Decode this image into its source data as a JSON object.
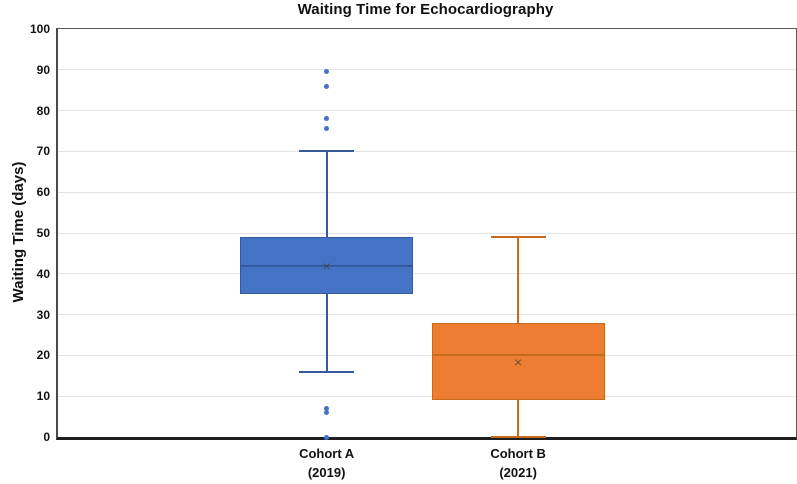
{
  "chart_data": {
    "type": "box",
    "title": "Waiting Time for Echocardiography",
    "ylabel": "Waiting Time (days)",
    "ylim": [
      0,
      100
    ],
    "yticks": [
      0,
      10,
      20,
      30,
      40,
      50,
      60,
      70,
      80,
      90,
      100
    ],
    "grid": true,
    "legend": false,
    "categories": [
      "Cohort A (2019)",
      "Cohort B (2021)"
    ],
    "series": [
      {
        "name": "Cohort A",
        "label_lines": [
          "Cohort A",
          "(2019)"
        ],
        "fill": "#4472C4",
        "edge": "#35599C",
        "median_color": "#35599C",
        "whisker_low": 16,
        "q1": 35,
        "median": 42,
        "mean": 42,
        "q3": 49,
        "whisker_high": 70,
        "outliers": [
          89.5,
          86,
          78,
          75.5,
          7,
          6,
          0
        ]
      },
      {
        "name": "Cohort B",
        "label_lines": [
          "Cohort B",
          "(2021)"
        ],
        "fill": "#ED7D31",
        "edge": "#C86A1E",
        "median_color": "#C86A1E",
        "whisker_low": 0,
        "q1": 9,
        "median": 20,
        "mean": 18.5,
        "q3": 28,
        "whisker_high": 49,
        "outliers": []
      }
    ],
    "colors": {
      "grid": "#E3E3E3",
      "axis_border": "#595959",
      "bottom_axis": "#1F1F1F",
      "text": "#111111",
      "mean_marker": "#404040"
    }
  }
}
